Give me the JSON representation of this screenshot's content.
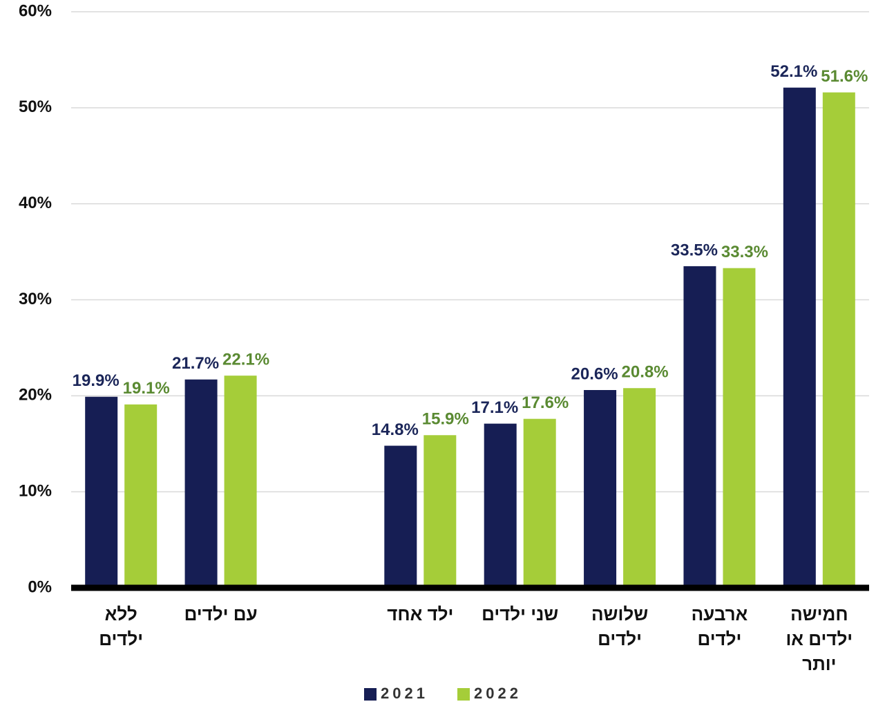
{
  "chart_data": {
    "type": "bar",
    "categories": [
      "ללא\nילדים",
      "עם ילדים",
      null,
      "ילד אחד",
      "שני ילדים",
      "שלושה\nילדים",
      "ארבעה\nילדים",
      "חמישה\nילדים או\nיותר"
    ],
    "series": [
      {
        "name": "2021",
        "color": "#161e54",
        "label_color": "#1b2659",
        "values": [
          19.9,
          21.7,
          null,
          14.8,
          17.1,
          20.6,
          33.5,
          52.1
        ],
        "value_labels": [
          "19.9%",
          "21.7%",
          null,
          "14.8%",
          "17.1%",
          "20.6%",
          "33.5%",
          "52.1%"
        ]
      },
      {
        "name": "2022",
        "color": "#a5cd39",
        "label_color": "#5a8a32",
        "values": [
          19.1,
          22.1,
          null,
          15.9,
          17.6,
          20.8,
          33.3,
          51.6
        ],
        "value_labels": [
          "19.1%",
          "22.1%",
          null,
          "15.9%",
          "17.6%",
          "20.8%",
          "33.3%",
          "51.6%"
        ]
      }
    ],
    "ylim": [
      0,
      60
    ],
    "yticks": [
      {
        "value": 0,
        "label": "0%"
      },
      {
        "value": 10,
        "label": "10%"
      },
      {
        "value": 20,
        "label": "20%"
      },
      {
        "value": 30,
        "label": "30%"
      },
      {
        "value": 40,
        "label": "40%"
      },
      {
        "value": 50,
        "label": "50%"
      },
      {
        "value": 60,
        "label": "60%"
      }
    ],
    "grid": true
  }
}
